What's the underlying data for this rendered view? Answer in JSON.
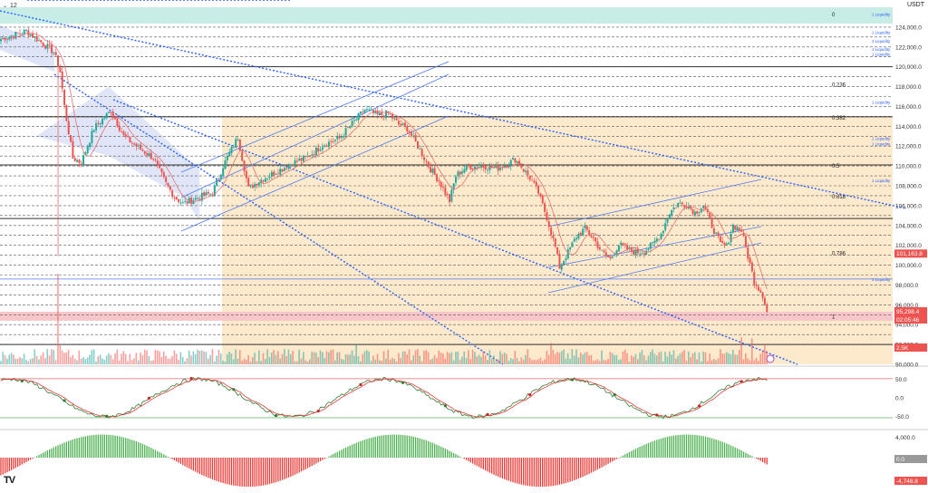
{
  "header": {
    "interval_value": "12",
    "currency": "USDT"
  },
  "logo_text": "TV",
  "colors": {
    "up": "#26a69a",
    "down": "#ef5350",
    "fib_zone": "#fde9cc",
    "trend_dotted": "#2962ff",
    "channel": "#4c7bf2",
    "support_zone": "#f7c6cb",
    "top_band": "#c7ede6"
  },
  "price_axis_labels": [
    "124,000.0",
    "122,000.0",
    "120,000.0",
    "118,000.0",
    "116,000.0",
    "114,000.0",
    "112,000.0",
    "110,000.0",
    "108,000.0",
    "106,000.0",
    "104,000.0",
    "102,000.0",
    "100,000.0",
    "98,000.0",
    "96,000.0",
    "94,000.0",
    "92,000.0",
    "90,000.0"
  ],
  "fib_levels": [
    {
      "label": "0",
      "price": 125350
    },
    {
      "label": "0.236",
      "price": 118300
    },
    {
      "label": "0.382",
      "price": 114950
    },
    {
      "label": "0.5",
      "price": 110100
    },
    {
      "label": "0.618",
      "price": 107000
    },
    {
      "label": "0.786",
      "price": 101300
    },
    {
      "label": "1",
      "price": 94900
    }
  ],
  "liquidity_label": "1 Liquidity",
  "liquidity_levels": [
    125300,
    123500,
    122600,
    121800,
    121300,
    116450,
    112800,
    112250,
    108550,
    98600
  ],
  "badges": {
    "ma_price": "101,163.8",
    "last_price": "95,298.4",
    "countdown": "02:05:46",
    "volume": "2.5K",
    "oscillator_value": "0.0",
    "histogram_value": "-4,748.8"
  },
  "oscillator_axis_labels": [
    "50.0",
    "0.0",
    "-50.0"
  ],
  "histogram_axis_labels": [
    "4,000.0"
  ],
  "chart_data": {
    "type": "candlestick",
    "y_range": [
      90000,
      126000
    ],
    "price_path_keypoints": [
      [
        0,
        122800
      ],
      [
        12,
        123600
      ],
      [
        25,
        121500
      ],
      [
        28,
        119500
      ],
      [
        30,
        116000
      ],
      [
        34,
        110800
      ],
      [
        38,
        110300
      ],
      [
        44,
        113800
      ],
      [
        52,
        115600
      ],
      [
        58,
        113000
      ],
      [
        64,
        112000
      ],
      [
        72,
        110800
      ],
      [
        78,
        108200
      ],
      [
        82,
        106900
      ],
      [
        86,
        106200
      ],
      [
        93,
        106800
      ],
      [
        100,
        107300
      ],
      [
        105,
        110000
      ],
      [
        112,
        112900
      ],
      [
        117,
        107700
      ],
      [
        122,
        108500
      ],
      [
        130,
        109400
      ],
      [
        138,
        110300
      ],
      [
        145,
        110900
      ],
      [
        152,
        112100
      ],
      [
        160,
        112800
      ],
      [
        167,
        114500
      ],
      [
        172,
        115700
      ],
      [
        178,
        115100
      ],
      [
        183,
        115300
      ],
      [
        188,
        114200
      ],
      [
        192,
        113800
      ],
      [
        197,
        112000
      ],
      [
        202,
        110000
      ],
      [
        207,
        108500
      ],
      [
        212,
        106500
      ],
      [
        215,
        109000
      ],
      [
        220,
        109900
      ],
      [
        228,
        110000
      ],
      [
        235,
        109800
      ],
      [
        240,
        110300
      ],
      [
        243,
        110700
      ],
      [
        246,
        109900
      ],
      [
        250,
        108800
      ],
      [
        254,
        107300
      ],
      [
        258,
        104800
      ],
      [
        262,
        101800
      ],
      [
        264,
        99800
      ],
      [
        268,
        101300
      ],
      [
        272,
        102900
      ],
      [
        276,
        103700
      ],
      [
        280,
        102700
      ],
      [
        284,
        101300
      ],
      [
        288,
        100600
      ],
      [
        292,
        102100
      ],
      [
        296,
        101600
      ],
      [
        300,
        101300
      ],
      [
        304,
        101400
      ],
      [
        308,
        102100
      ],
      [
        312,
        103200
      ],
      [
        316,
        105300
      ],
      [
        320,
        106200
      ],
      [
        324,
        106100
      ],
      [
        328,
        105300
      ],
      [
        332,
        106000
      ],
      [
        336,
        104000
      ],
      [
        340,
        102100
      ],
      [
        343,
        101900
      ],
      [
        346,
        104000
      ],
      [
        350,
        103500
      ],
      [
        353,
        100900
      ],
      [
        356,
        98400
      ],
      [
        360,
        97000
      ],
      [
        362,
        95300
      ]
    ],
    "oscillator": {
      "range": [
        -70,
        70
      ]
    },
    "histogram": {
      "range": [
        -6500,
        4700
      ]
    }
  }
}
